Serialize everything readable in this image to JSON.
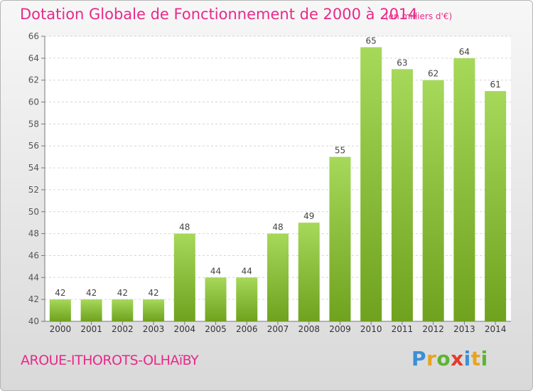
{
  "header": {
    "title": "Dotation Globale de Fonctionnement de 2000 à 2014",
    "unit": "(en milliers d'€)"
  },
  "footer": {
    "commune": "AROUE-ITHOROTS-OLHAïBY"
  },
  "logo": {
    "letters": [
      "P",
      "r",
      "o",
      "x",
      "i",
      "t",
      "i"
    ],
    "colors": [
      "#3a8fd6",
      "#e9a321",
      "#5cb531",
      "#e23b2e",
      "#3a8fd6",
      "#e9a321",
      "#5cb531"
    ]
  },
  "chart_data": {
    "type": "bar",
    "title": "Dotation Globale de Fonctionnement de 2000 à 2014",
    "subtitle": "(en milliers d'€)",
    "categories": [
      "2000",
      "2001",
      "2002",
      "2003",
      "2004",
      "2005",
      "2006",
      "2007",
      "2008",
      "2009",
      "2010",
      "2011",
      "2012",
      "2013",
      "2014"
    ],
    "values": [
      42,
      42,
      42,
      42,
      48,
      44,
      44,
      48,
      49,
      55,
      65,
      63,
      62,
      64,
      61
    ],
    "ylim": [
      40,
      66
    ],
    "yticks": [
      40,
      42,
      44,
      46,
      48,
      50,
      52,
      54,
      56,
      58,
      60,
      62,
      64,
      66
    ],
    "grid": true,
    "bar_color_light": "#a6d85a",
    "bar_color_dark": "#6fa21e"
  }
}
